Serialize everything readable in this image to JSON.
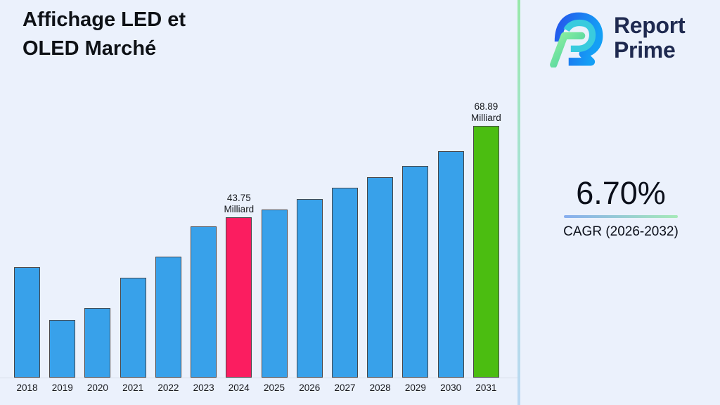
{
  "page": {
    "background": "#EBF1FC"
  },
  "header": {
    "title": "Affichage LED et\nOLED Marché"
  },
  "brand": {
    "line1": "Report",
    "line2": "Prime"
  },
  "kpi": {
    "value": "6.70%",
    "label": "CAGR (2026-2032)"
  },
  "chart_data": {
    "type": "bar",
    "title": "Affichage LED et OLED Marché",
    "unit": "Milliard",
    "xlabel": "",
    "ylabel": "",
    "ylim": [
      0,
      75
    ],
    "grid": false,
    "legend": false,
    "colors": {
      "blue": "#38A1EA",
      "pink": "#FB1D60",
      "green": "#4BBD11",
      "edge": "#46464A"
    },
    "categories": [
      "2018",
      "2019",
      "2020",
      "2021",
      "2022",
      "2023",
      "2024",
      "2025",
      "2026",
      "2027",
      "2028",
      "2029",
      "2030",
      "2031"
    ],
    "bars": [
      {
        "year": "2018",
        "value": 30.2,
        "color": "blue"
      },
      {
        "year": "2019",
        "value": 15.8,
        "color": "blue"
      },
      {
        "year": "2020",
        "value": 19.1,
        "color": "blue"
      },
      {
        "year": "2021",
        "value": 27.3,
        "color": "blue"
      },
      {
        "year": "2022",
        "value": 33.0,
        "color": "blue"
      },
      {
        "year": "2023",
        "value": 41.3,
        "color": "blue"
      },
      {
        "year": "2024",
        "value": 43.75,
        "color": "pink",
        "annotation": "43.75\nMilliard"
      },
      {
        "year": "2025",
        "value": 46.0,
        "color": "blue"
      },
      {
        "year": "2026",
        "value": 48.8,
        "color": "blue"
      },
      {
        "year": "2027",
        "value": 51.9,
        "color": "blue"
      },
      {
        "year": "2028",
        "value": 54.9,
        "color": "blue"
      },
      {
        "year": "2029",
        "value": 57.8,
        "color": "blue"
      },
      {
        "year": "2030",
        "value": 61.9,
        "color": "blue"
      },
      {
        "year": "2031",
        "value": 68.89,
        "color": "green",
        "annotation": "68.89\nMilliard"
      }
    ]
  }
}
